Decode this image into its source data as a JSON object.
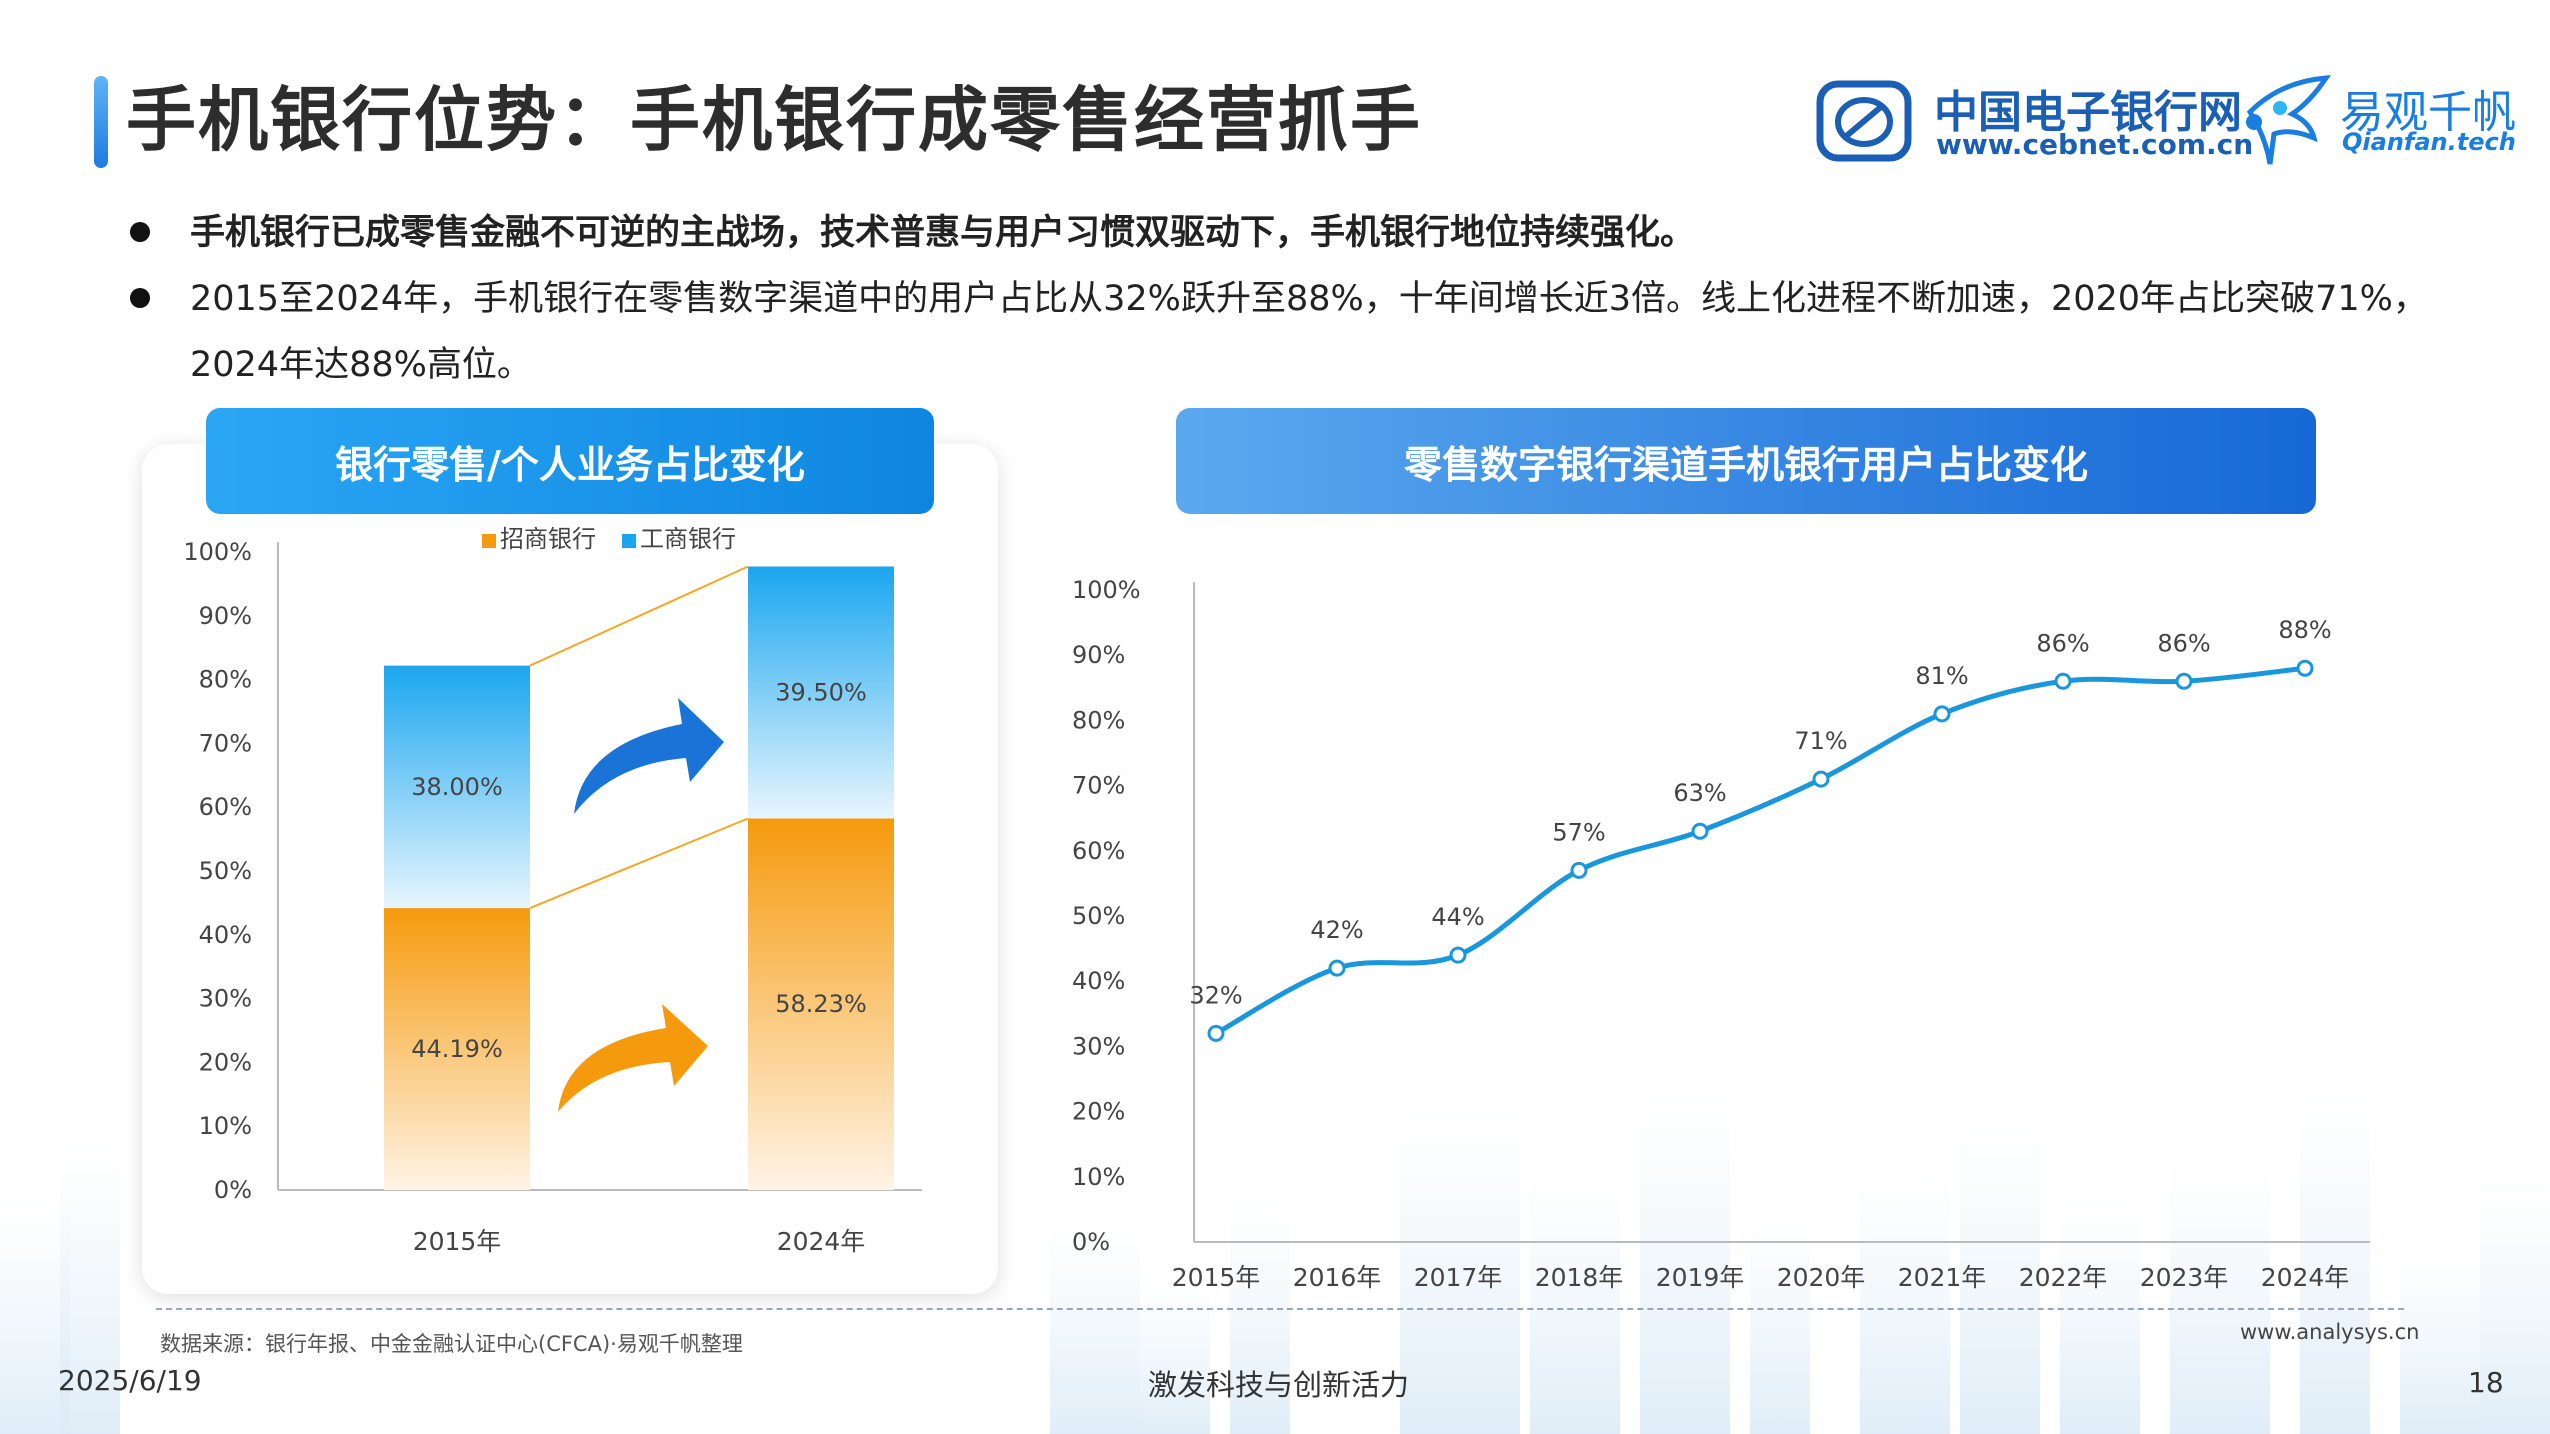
{
  "header": {
    "title": "手机银行位势：手机银行成零售经营抓手",
    "logo_cebnet_cn": "中国电子银行网",
    "logo_cebnet_url": "www.cebnet.com.cn",
    "logo_qianfan_cn": "易观千帆",
    "logo_qianfan_en": "Qianfan.tech"
  },
  "bullets": [
    "手机银行已成零售金融不可逆的主战场，技术普惠与用户习惯双驱动下，手机银行地位持续强化。",
    "2015至2024年，手机银行在零售数字渠道中的用户占比从32%跃升至88%，十年间增长近3倍。线上化进程不断加速，2020年占比突破71%，2024年达88%高位。"
  ],
  "left_panel": {
    "heading": "银行零售/个人业务占比变化"
  },
  "right_panel": {
    "heading": "零售数字银行渠道手机银行用户占比变化"
  },
  "footer": {
    "source": "数据来源：银行年报、中金金融认证中心(CFCA)·易观千帆整理",
    "site": "www.analysys.cn",
    "date": "2025/6/19",
    "slogan": "激发科技与创新活力",
    "page_number": "18"
  },
  "colors": {
    "cmb_orange": "#f59a0d",
    "icbc_blue": "#1aa6ef",
    "line_blue": "#1a96dc",
    "accent_blue": "#1668d6"
  },
  "chart_data": [
    {
      "type": "bar",
      "stacked": true,
      "categories": [
        "2015年",
        "2024年"
      ],
      "series": [
        {
          "name": "招商银行",
          "values": [
            44.19,
            58.23
          ],
          "labels": [
            "44.19%",
            "58.23%"
          ]
        },
        {
          "name": "工商银行",
          "values": [
            38.0,
            39.5
          ],
          "labels": [
            "38.00%",
            "39.50%"
          ]
        }
      ],
      "yticks": [
        "0%",
        "10%",
        "20%",
        "30%",
        "40%",
        "50%",
        "60%",
        "70%",
        "80%",
        "90%",
        "100%"
      ],
      "ylim": [
        0,
        100
      ],
      "legend": "top-center",
      "grid": false
    },
    {
      "type": "line",
      "categories": [
        "2015年",
        "2016年",
        "2017年",
        "2018年",
        "2019年",
        "2020年",
        "2021年",
        "2022年",
        "2023年",
        "2024年"
      ],
      "values": [
        32,
        42,
        44,
        57,
        63,
        71,
        81,
        86,
        86,
        88
      ],
      "labels": [
        "32%",
        "42%",
        "44%",
        "57%",
        "63%",
        "71%",
        "81%",
        "86%",
        "86%",
        "88%"
      ],
      "yticks": [
        "0%",
        "10%",
        "20%",
        "30%",
        "40%",
        "50%",
        "60%",
        "70%",
        "80%",
        "90%",
        "100%"
      ],
      "ylim": [
        0,
        100
      ],
      "grid": false,
      "smooth": true
    }
  ]
}
